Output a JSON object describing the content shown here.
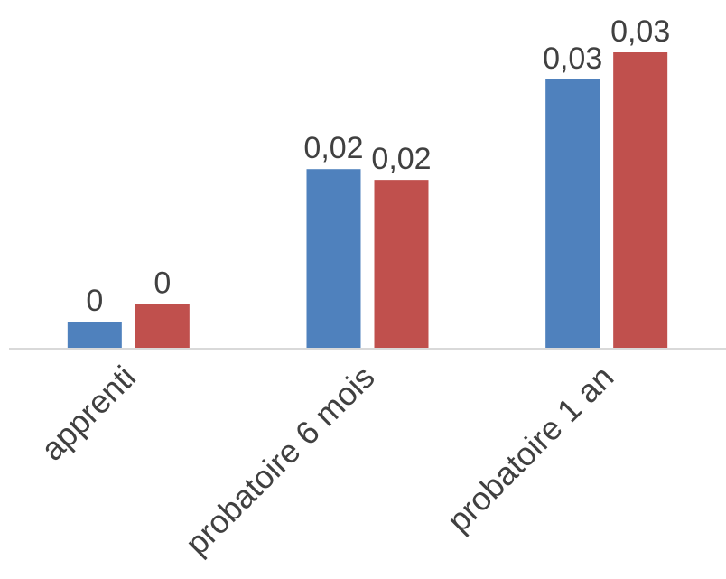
{
  "chart_data": {
    "type": "bar",
    "categories": [
      "apprenti",
      "probatoire 6 mois",
      "probatoire 1 an"
    ],
    "series": [
      {
        "color": "#4f81bd",
        "values": [
          0.003,
          0.02,
          0.03
        ],
        "labels": [
          "0",
          "0,02",
          "0,03"
        ]
      },
      {
        "color": "#c0504d",
        "values": [
          0.005,
          0.0188,
          0.033
        ],
        "labels": [
          "0",
          "0,02",
          "0,03"
        ]
      }
    ],
    "title": "",
    "xlabel": "",
    "ylabel": "",
    "ylim": [
      0,
      0.033
    ],
    "grid": false,
    "legend": "none",
    "baseline_color": "#d9d9d9"
  }
}
